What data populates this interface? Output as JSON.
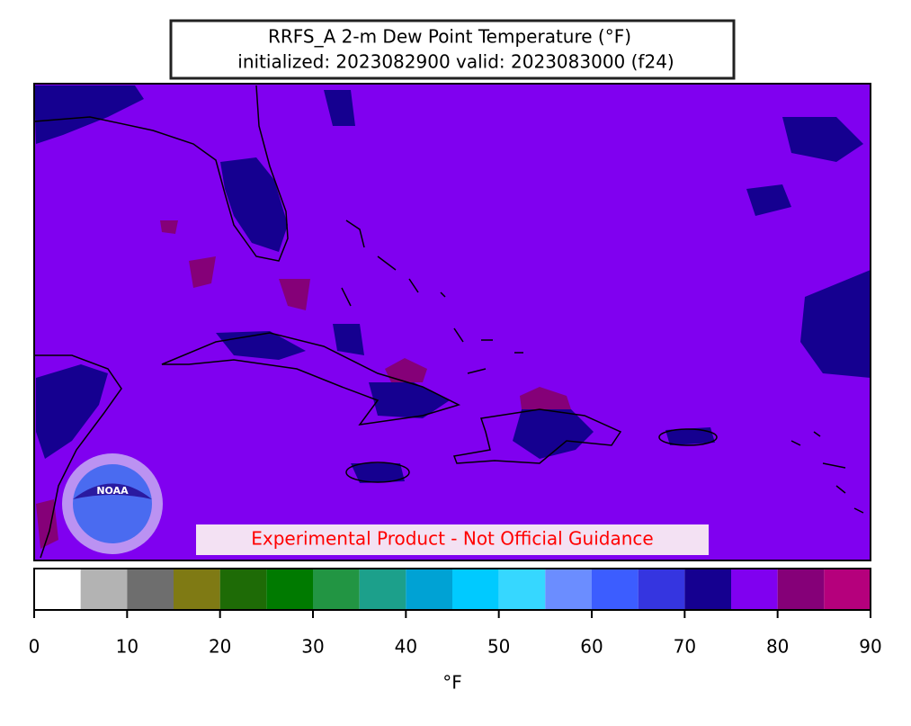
{
  "map": {
    "title": "RRFS_A 2-m Dew Point Temperature (°F)",
    "subtitle": "initialized: 2023082900 valid: 2023083000 (f24)",
    "disclaimer": "Experimental Product - Not Official Guidance",
    "logo_text": "NOAA",
    "colorbar": {
      "label": "°F",
      "lim": [
        0,
        90
      ],
      "bounds": [
        0,
        5,
        10,
        15,
        20,
        25,
        30,
        35,
        40,
        45,
        50,
        55,
        60,
        65,
        70,
        75,
        80,
        85,
        90
      ],
      "colors": [
        "#ffffff",
        "#b3b3b3",
        "#6e6e6e",
        "#7f7a14",
        "#1e6b06",
        "#007a00",
        "#229543",
        "#1ca08b",
        "#00a2d4",
        "#00caff",
        "#36d7ff",
        "#6b8dff",
        "#3c5dff",
        "#3535e0",
        "#150090",
        "#8000f0",
        "#850078",
        "#b5007c"
      ],
      "ticks": [
        0,
        10,
        20,
        30,
        40,
        50,
        60,
        70,
        80,
        90
      ]
    }
  }
}
